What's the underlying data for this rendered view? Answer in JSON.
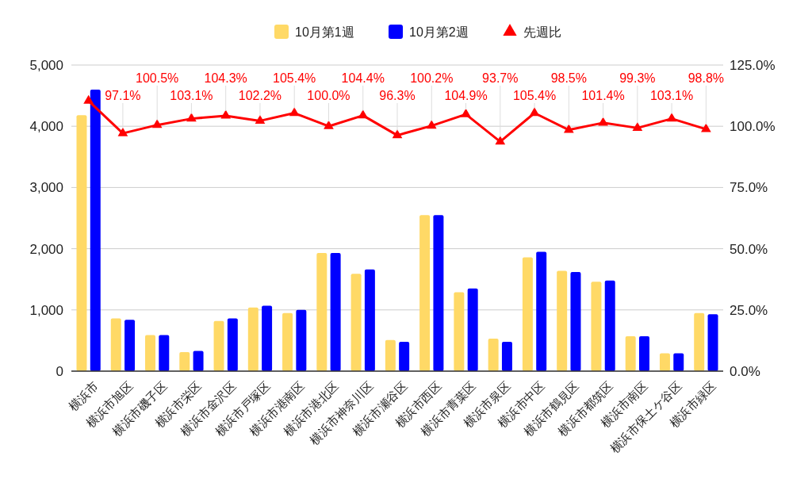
{
  "chart_data": {
    "type": "bar",
    "categories": [
      "横浜市",
      "横浜市旭区",
      "横浜市磯子区",
      "横浜市栄区",
      "横浜市金沢区",
      "横浜市戸塚区",
      "横浜市港南区",
      "横浜市港北区",
      "横浜市神奈川区",
      "横浜市瀬谷区",
      "横浜市西区",
      "横浜市青葉区",
      "横浜市泉区",
      "横浜市中区",
      "横浜市鶴見区",
      "横浜市都筑区",
      "横浜市南区",
      "横浜市保土ケ谷区",
      "横浜市緑区"
    ],
    "series": [
      {
        "name": "10月第1週",
        "color": "#ffd966",
        "values": [
          4180,
          860,
          590,
          310,
          820,
          1040,
          950,
          1930,
          1590,
          510,
          2550,
          1290,
          530,
          1860,
          1640,
          1460,
          570,
          290,
          950
        ]
      },
      {
        "name": "10月第2週",
        "color": "#0000ff",
        "values": [
          4600,
          840,
          590,
          330,
          860,
          1070,
          1000,
          1930,
          1660,
          480,
          2550,
          1350,
          480,
          1950,
          1620,
          1480,
          570,
          290,
          930
        ]
      },
      {
        "name": "先週比",
        "type": "line",
        "axis": "y2",
        "color": "#ff0000",
        "marker": "triangle",
        "values": [
          110.4,
          97.1,
          100.5,
          103.1,
          104.3,
          102.2,
          105.4,
          100.0,
          104.4,
          96.3,
          100.2,
          104.9,
          93.7,
          105.4,
          98.5,
          101.4,
          99.3,
          103.1,
          98.8
        ],
        "value_labels": [
          null,
          "97.1%",
          "100.5%",
          "103.1%",
          "104.3%",
          "102.2%",
          "105.4%",
          "100.0%",
          "104.4%",
          "96.3%",
          "100.2%",
          "104.9%",
          "93.7%",
          "105.4%",
          "98.5%",
          "101.4%",
          "99.3%",
          "103.1%",
          "98.8%"
        ]
      }
    ],
    "ylim": [
      0,
      5000
    ],
    "yticks": [
      {
        "value": 0,
        "label": "0"
      },
      {
        "value": 1000,
        "label": "1,000"
      },
      {
        "value": 2000,
        "label": "2,000"
      },
      {
        "value": 3000,
        "label": "3,000"
      },
      {
        "value": 4000,
        "label": "4,000"
      },
      {
        "value": 5000,
        "label": "5,000"
      }
    ],
    "y2lim": [
      0,
      125
    ],
    "y2ticks": [
      {
        "value": 0,
        "label": "0.0%"
      },
      {
        "value": 25,
        "label": "25.0%"
      },
      {
        "value": 50,
        "label": "50.0%"
      },
      {
        "value": 75,
        "label": "75.0%"
      },
      {
        "value": 100,
        "label": "100.0%"
      },
      {
        "value": 125,
        "label": "125.0%"
      }
    ],
    "grid": "y",
    "legend": "top"
  }
}
